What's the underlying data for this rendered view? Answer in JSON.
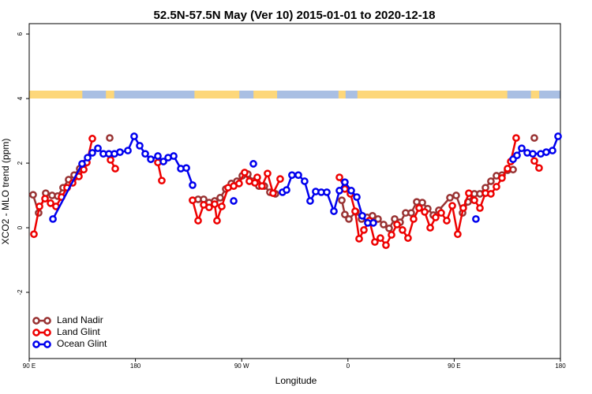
{
  "chart_data": {
    "type": "line",
    "title": "52.5N-57.5N May (Ver 10)   2015-01-01 to 2020-12-18",
    "x_label": "Longitude",
    "y_label": "XCO2 - MLO trend (ppm)",
    "xlim": [
      90,
      540
    ],
    "ylim": [
      -4.05,
      6.32
    ],
    "xticks": [
      {
        "value": 90,
        "label": "90 E"
      },
      180,
      {
        "value": 270,
        "label": "90 W"
      },
      {
        "value": 360,
        "label": "0"
      },
      {
        "value": 450,
        "label": "90 E"
      },
      {
        "value": 540,
        "label": "180"
      }
    ],
    "yticks": [
      -2,
      0,
      2,
      4,
      6
    ],
    "legend": "bottom-left",
    "series": [
      {
        "name": "Land Nadir",
        "color": "#993333",
        "x": [
          93.3,
          98.0,
          104.0,
          109.4,
          114.1,
          118.7,
          123.4,
          128.1,
          132.8,
          137.5,
          null,
          158.2,
          null,
          228.4,
          233.1,
          237.8,
          242.4,
          247.1,
          251.8,
          256.5,
          261.2,
          265.9,
          270.5,
          275.2,
          279.9,
          284.6,
          289.2,
          293.9,
          298.6,
          null,
          354.8,
          357.4,
          360.8,
          366.8,
          371.5,
          376.2,
          380.8,
          385.5,
          390.2,
          394.9,
          399.6,
          404.2,
          408.9,
          413.6,
          418.3,
          423.0,
          427.6,
          432.3,
          437.0,
          446.4,
          451.7,
          457.1,
          461.7,
          467.1,
          471.8,
          476.5,
          481.1,
          485.8,
          490.5,
          495.2,
          499.9,
          null,
          517.9
        ],
        "values": [
          1.02,
          0.46,
          1.07,
          1.0,
          0.98,
          1.24,
          1.49,
          1.63,
          1.83,
          2.0,
          null,
          2.78,
          null,
          0.85,
          0.88,
          0.88,
          0.78,
          0.83,
          0.93,
          1.2,
          1.37,
          1.44,
          1.61,
          1.66,
          1.44,
          1.29,
          1.29,
          1.1,
          1.05,
          null,
          0.85,
          0.41,
          0.27,
          0.49,
          0.27,
          0.32,
          0.37,
          0.27,
          0.1,
          -0.02,
          0.27,
          0.17,
          0.46,
          0.46,
          0.8,
          0.78,
          0.59,
          0.39,
          0.54,
          0.93,
          1.0,
          0.46,
          0.8,
          1.05,
          1.05,
          1.24,
          1.44,
          1.61,
          1.63,
          1.78,
          1.8,
          null,
          2.78
        ]
      },
      {
        "name": "Land Glint",
        "color": "#ee0000",
        "x": [
          94.0,
          98.7,
          103.4,
          108.1,
          112.7,
          117.4,
          122.1,
          126.8,
          132.1,
          136.2,
          138.8,
          143.5,
          null,
          158.9,
          162.9,
          null,
          199.0,
          202.3,
          null,
          228.4,
          233.1,
          237.8,
          242.4,
          247.1,
          249.1,
          253.1,
          258.5,
          263.2,
          267.8,
          272.5,
          276.5,
          281.2,
          283.2,
          287.2,
          291.9,
          296.6,
          302.6,
          null,
          352.8,
          357.4,
          362.1,
          366.1,
          369.5,
          373.5,
          378.2,
          382.8,
          387.5,
          392.2,
          396.9,
          401.6,
          406.2,
          410.9,
          415.6,
          420.3,
          425.0,
          429.7,
          434.3,
          439.0,
          443.7,
          448.4,
          453.0,
          457.7,
          462.4,
          467.1,
          471.8,
          476.5,
          481.1,
          485.8,
          490.5,
          495.2,
          497.9,
          502.5,
          null,
          517.9,
          521.9
        ],
        "values": [
          -0.2,
          0.66,
          0.9,
          0.76,
          0.66,
          0.95,
          1.24,
          1.39,
          1.59,
          1.8,
          2.02,
          2.76,
          null,
          2.1,
          1.83,
          null,
          2.02,
          1.46,
          null,
          0.85,
          0.22,
          0.71,
          0.63,
          0.73,
          0.22,
          0.66,
          1.24,
          1.29,
          1.37,
          1.71,
          1.44,
          1.39,
          1.56,
          1.29,
          1.68,
          1.07,
          1.51,
          null,
          1.56,
          1.2,
          1.05,
          0.51,
          -0.34,
          -0.07,
          0.22,
          -0.44,
          -0.32,
          -0.54,
          -0.22,
          0.1,
          -0.07,
          -0.32,
          0.27,
          0.61,
          0.49,
          0.0,
          0.32,
          0.46,
          0.22,
          0.68,
          -0.2,
          0.61,
          1.07,
          0.85,
          0.61,
          1.07,
          1.05,
          1.27,
          1.54,
          1.83,
          2.05,
          2.78,
          null,
          2.07,
          1.85
        ]
      },
      {
        "name": "Ocean Glint",
        "color": "#0000ee",
        "x": [
          110.1,
          134.8,
          139.5,
          143.5,
          148.2,
          152.8,
          157.5,
          162.2,
          166.9,
          173.6,
          178.9,
          183.6,
          188.3,
          193.0,
          199.0,
          203.7,
          207.7,
          212.4,
          218.4,
          223.1,
          228.4,
          null,
          263.2,
          null,
          279.9,
          null,
          304.6,
          308.0,
          312.6,
          318.0,
          323.3,
          328.0,
          332.7,
          337.4,
          342.1,
          348.1,
          352.8,
          357.4,
          362.8,
          367.5,
          372.2,
          376.8,
          381.5,
          null,
          468.4,
          null,
          499.9,
          503.2,
          507.2,
          511.9,
          516.6,
          523.3,
          528.0,
          533.3,
          538.0
        ],
        "values": [
          0.27,
          1.98,
          2.17,
          2.32,
          2.46,
          2.29,
          2.29,
          2.29,
          2.34,
          2.39,
          2.83,
          2.54,
          2.29,
          2.12,
          2.22,
          2.05,
          2.17,
          2.22,
          1.83,
          1.85,
          1.32,
          null,
          0.83,
          null,
          1.98,
          null,
          1.1,
          1.17,
          1.63,
          1.63,
          1.44,
          0.83,
          1.12,
          1.1,
          1.1,
          0.51,
          1.15,
          1.41,
          1.15,
          0.95,
          0.37,
          0.15,
          0.15,
          null,
          0.27,
          null,
          2.12,
          2.24,
          2.46,
          2.32,
          2.29,
          2.29,
          2.34,
          2.39,
          2.83
        ]
      }
    ]
  }
}
